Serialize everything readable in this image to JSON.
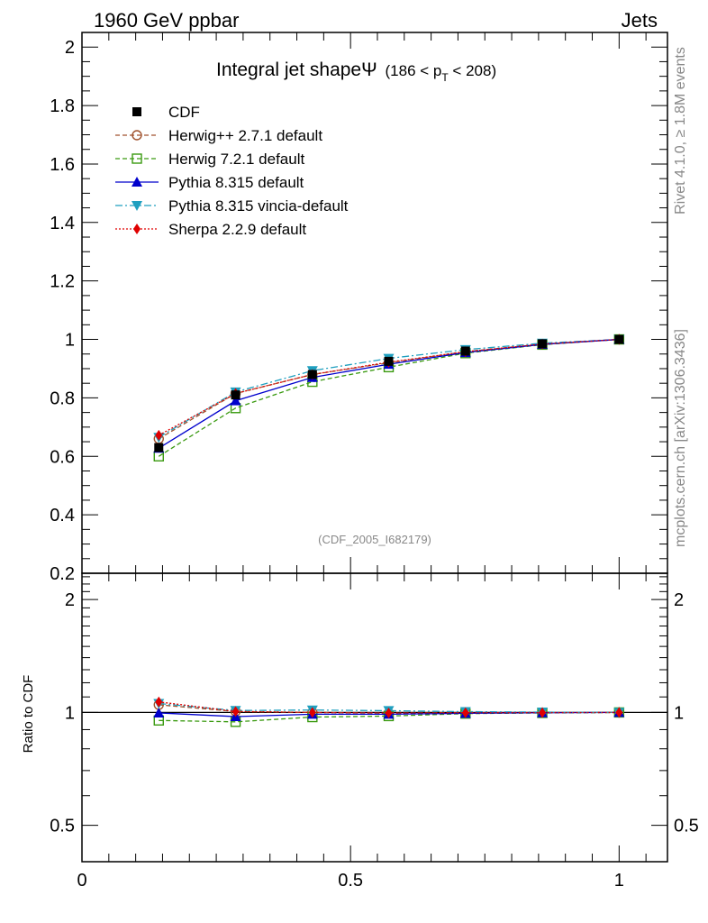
{
  "header": {
    "left": "1960 GeV ppbar",
    "right": "Jets"
  },
  "side_labels": {
    "rivet": "Rivet 4.1.0, ≥ 1.8M events",
    "mcplots": "mcplots.cern.ch [arXiv:1306.3436]"
  },
  "chart_data": {
    "type": "line",
    "title": "Integral jet shapeΨ",
    "title_range": "(186 < p",
    "title_range_sub": "T",
    "title_range_end": " < 208)",
    "watermark": "(CDF_2005_I682179)",
    "xlabel": "",
    "ylabel_main": "",
    "ylabel_ratio": "Ratio to CDF",
    "xlim": [
      0,
      1.09
    ],
    "ylim_main": [
      0.2,
      2.05
    ],
    "ylim_ratio": [
      0.4,
      2.35
    ],
    "x_ticks": [
      0,
      0.5,
      1
    ],
    "x_tick_labels": [
      "0",
      "0.5",
      "1"
    ],
    "y_ticks_main": [
      0.2,
      0.4,
      0.6,
      0.8,
      1.0,
      1.2,
      1.4,
      1.6,
      1.8,
      2.0
    ],
    "y_tick_labels_main": [
      "0.2",
      "0.4",
      "0.6",
      "0.8",
      "1",
      "1.2",
      "1.4",
      "1.6",
      "1.8",
      "2"
    ],
    "y_ticks_ratio": [
      0.5,
      1,
      2
    ],
    "y_tick_labels_ratio": [
      "0.5",
      "1",
      "2"
    ],
    "x": [
      0.143,
      0.286,
      0.429,
      0.571,
      0.714,
      0.857,
      1.0
    ],
    "series": [
      {
        "name": "CDF",
        "color": "#000000",
        "marker": "square-filled",
        "dash": "none",
        "line": false,
        "values": [
          0.63,
          0.81,
          0.88,
          0.925,
          0.96,
          0.985,
          1.0
        ]
      },
      {
        "name": "Herwig++ 2.7.1 default",
        "color": "#a0522d",
        "marker": "circle-open",
        "dash": "5,3",
        "values": [
          0.66,
          0.815,
          0.88,
          0.92,
          0.958,
          0.984,
          1.0
        ]
      },
      {
        "name": "Herwig 7.2.1 default",
        "color": "#3a9a10",
        "marker": "square-open",
        "dash": "5,3",
        "values": [
          0.6,
          0.765,
          0.855,
          0.905,
          0.953,
          0.982,
          1.0
        ]
      },
      {
        "name": "Pythia 8.315 default",
        "color": "#0000cc",
        "marker": "triangle-up",
        "dash": "none",
        "values": [
          0.628,
          0.79,
          0.87,
          0.915,
          0.955,
          0.983,
          1.0
        ]
      },
      {
        "name": "Pythia 8.315 vincia-default",
        "color": "#1f9fbf",
        "marker": "triangle-down",
        "dash": "8,3,2,3",
        "values": [
          0.665,
          0.82,
          0.893,
          0.935,
          0.965,
          0.987,
          1.0
        ]
      },
      {
        "name": "Sherpa 2.2.9 default",
        "color": "#e00000",
        "marker": "diamond",
        "dash": "2,2",
        "values": [
          0.672,
          0.815,
          0.88,
          0.922,
          0.958,
          0.984,
          1.0
        ]
      }
    ],
    "ratio_values": [
      [
        1.048,
        1.006,
        1.0,
        0.995,
        0.998,
        0.999,
        1.0
      ],
      [
        0.952,
        0.944,
        0.972,
        0.978,
        0.993,
        0.997,
        1.0
      ],
      [
        0.997,
        0.975,
        0.989,
        0.989,
        0.995,
        0.998,
        1.0
      ],
      [
        1.056,
        1.012,
        1.015,
        1.011,
        1.005,
        1.002,
        1.0
      ],
      [
        1.067,
        1.006,
        1.0,
        0.997,
        0.998,
        0.999,
        1.0
      ]
    ],
    "legend_position": "top-left"
  }
}
